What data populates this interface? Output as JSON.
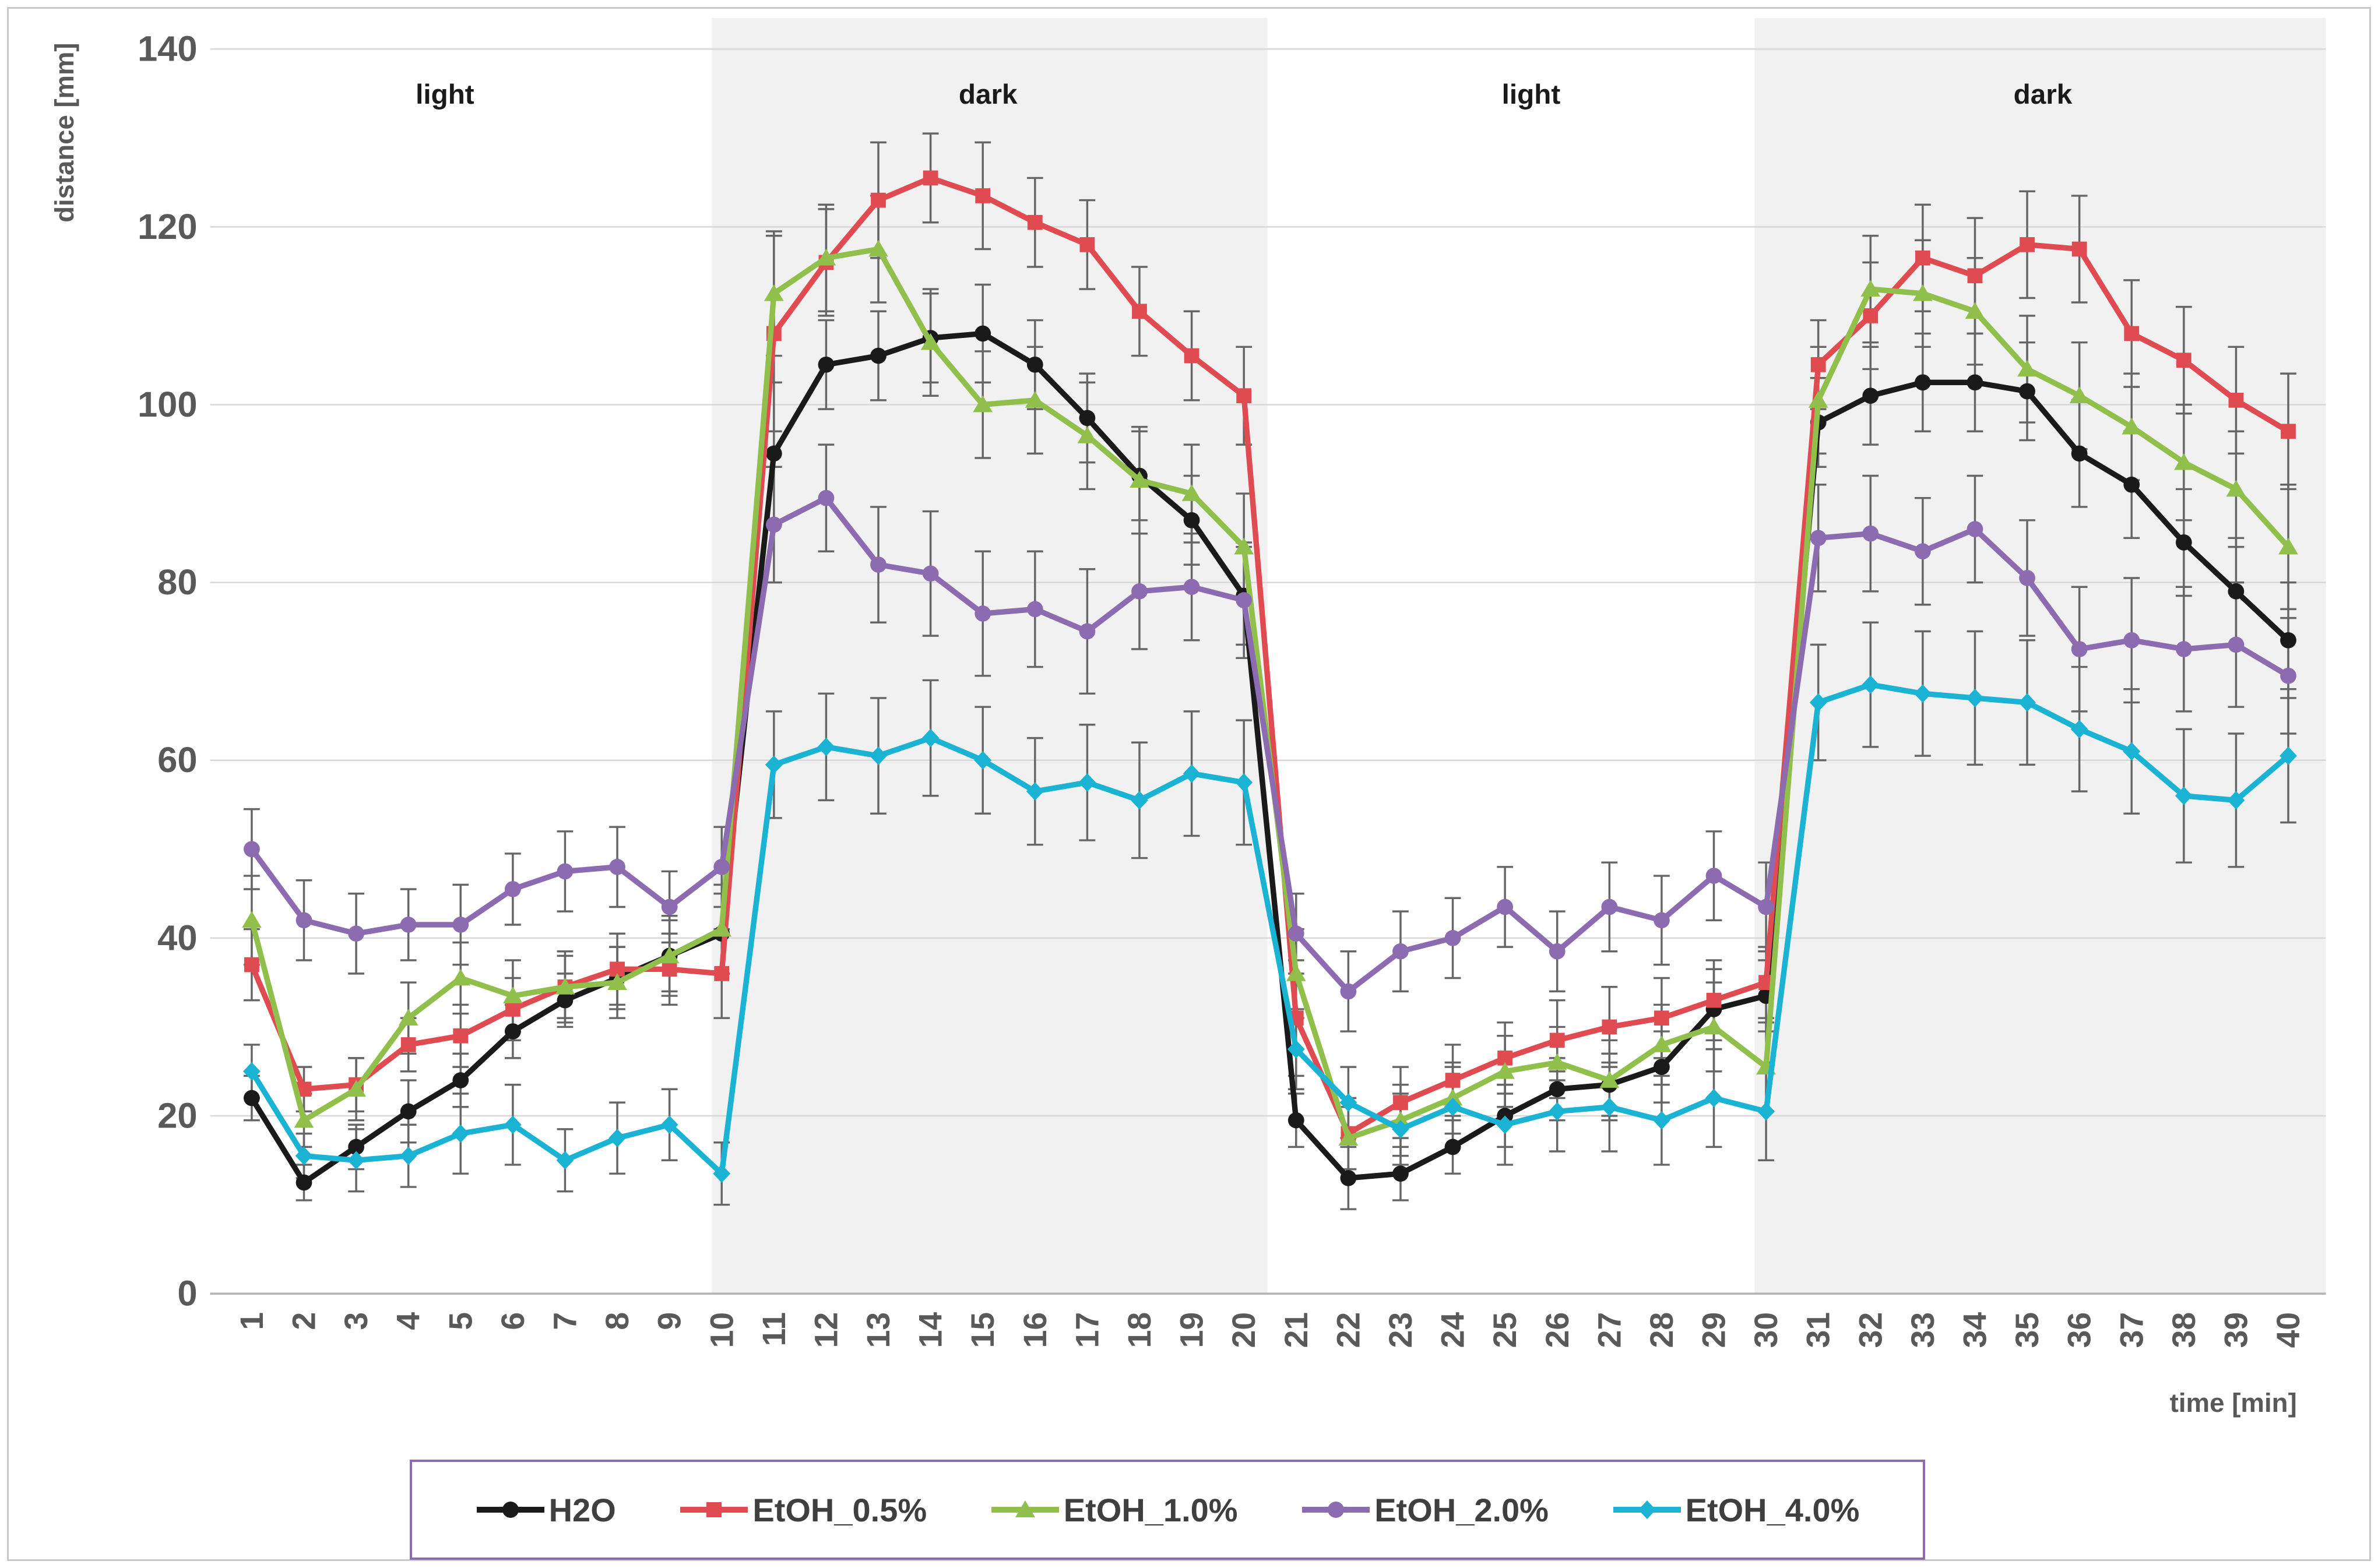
{
  "figure": {
    "border_color": "#c9c9c9",
    "background": "#ffffff"
  },
  "chart_data": {
    "type": "line",
    "title": "",
    "xlabel": "time [min]",
    "ylabel": "distance [mm]",
    "ylim": [
      0,
      140
    ],
    "yticks": [
      0,
      20,
      40,
      60,
      80,
      100,
      120,
      140
    ],
    "xticks": [
      1,
      2,
      3,
      4,
      5,
      6,
      7,
      8,
      9,
      10,
      11,
      12,
      13,
      14,
      15,
      16,
      17,
      18,
      19,
      20,
      21,
      22,
      23,
      24,
      25,
      26,
      27,
      28,
      29,
      30,
      31,
      32,
      33,
      34,
      35,
      36,
      37,
      38,
      39,
      40
    ],
    "grid": "horizontal",
    "legend_position": "bottom",
    "phase_bands": [
      {
        "label": "light",
        "x_start": 0.2,
        "x_end": 9.81,
        "shaded": false,
        "label_x": 4.7
      },
      {
        "label": "dark",
        "x_start": 9.81,
        "x_end": 20.45,
        "shaded": true,
        "label_x": 15.1
      },
      {
        "label": "light",
        "x_start": 20.45,
        "x_end": 29.78,
        "shaded": false,
        "label_x": 25.5
      },
      {
        "label": "dark",
        "x_start": 29.78,
        "x_end": 40.72,
        "shaded": true,
        "label_x": 35.3
      }
    ],
    "series": [
      {
        "name": "H2O",
        "color": "#1a1a1a",
        "marker": "circle",
        "values": [
          22,
          12.5,
          16.5,
          20.5,
          24,
          29.5,
          33,
          35.5,
          38,
          40.5,
          94.5,
          104.5,
          105.5,
          107.5,
          108,
          104.5,
          98.5,
          92,
          87,
          78.5,
          19.5,
          13,
          13.5,
          16.5,
          20,
          23,
          23.5,
          25.5,
          32,
          33.5,
          98,
          101,
          102.5,
          102.5,
          101.5,
          94.5,
          91,
          84.5,
          79,
          73.5
        ],
        "errors": [
          2.5,
          2,
          2.5,
          3.5,
          3,
          3,
          3,
          3.5,
          4,
          4.5,
          8,
          5,
          5,
          5,
          5.5,
          5,
          5,
          5,
          5,
          5.5,
          3,
          3.5,
          3,
          3,
          3.5,
          3.5,
          3.5,
          4,
          4.5,
          4,
          5,
          5.5,
          5.5,
          5.5,
          5.5,
          6,
          6,
          6,
          6,
          6.5
        ]
      },
      {
        "name": "EtOH_0.5%",
        "color": "#df4b50",
        "marker": "square",
        "values": [
          37,
          23,
          23.5,
          28,
          29,
          32,
          34.5,
          36.5,
          36.5,
          36,
          108,
          116,
          123,
          125.5,
          123.5,
          120.5,
          118,
          110.5,
          105.5,
          101,
          31,
          18,
          21.5,
          24,
          26.5,
          28.5,
          30,
          31,
          33,
          35,
          104.5,
          110,
          116.5,
          114.5,
          118,
          117.5,
          108,
          105,
          100.5,
          97
        ],
        "errors": [
          4,
          2.5,
          3,
          3,
          3.5,
          3.5,
          3.5,
          4,
          4,
          5,
          11,
          6,
          6.5,
          5,
          6,
          5,
          5,
          5,
          5,
          5.5,
          6.5,
          4,
          4,
          4,
          4,
          4.5,
          4.5,
          4.5,
          4.5,
          4,
          5,
          6,
          6,
          6.5,
          6,
          6,
          6,
          6,
          6,
          6.5
        ]
      },
      {
        "name": "EtOH_1.0%",
        "color": "#90bf4c",
        "marker": "triangle",
        "values": [
          42,
          19.5,
          23,
          31,
          35.5,
          33.5,
          34.5,
          35,
          38,
          41,
          112.5,
          116.5,
          117.5,
          107,
          100,
          100.5,
          96.5,
          91.5,
          90,
          84,
          36,
          17.5,
          19.5,
          22,
          25,
          26,
          24,
          28,
          30,
          25.5,
          100.5,
          113,
          112.5,
          110.5,
          104,
          101,
          97.5,
          93.5,
          90.5,
          84
        ],
        "errors": [
          5,
          3,
          3.5,
          4,
          4,
          4,
          4,
          4,
          4.5,
          5,
          7,
          6,
          6,
          6,
          6,
          6,
          6,
          6,
          5.5,
          6,
          5,
          3.5,
          4,
          4,
          4,
          4,
          4.5,
          4.5,
          5,
          5,
          6,
          6,
          6,
          6,
          6,
          6,
          6,
          6.5,
          6.5,
          7
        ]
      },
      {
        "name": "EtOH_2.0%",
        "color": "#8d6bb0",
        "marker": "circle",
        "values": [
          50,
          42,
          40.5,
          41.5,
          41.5,
          45.5,
          47.5,
          48,
          43.5,
          48,
          86.5,
          89.5,
          82,
          81,
          76.5,
          77,
          74.5,
          79,
          79.5,
          78,
          40.5,
          34,
          38.5,
          40,
          43.5,
          38.5,
          43.5,
          42,
          47,
          43.5,
          85,
          85.5,
          83.5,
          86,
          80.5,
          72.5,
          73.5,
          72.5,
          73,
          69.5
        ],
        "errors": [
          4.5,
          4.5,
          4.5,
          4,
          4.5,
          4,
          4.5,
          4.5,
          4,
          4.5,
          6.5,
          6,
          6.5,
          7,
          7,
          6.5,
          7,
          6.5,
          6,
          6.5,
          4.5,
          4.5,
          4.5,
          4.5,
          4.5,
          4.5,
          5,
          5,
          5,
          5,
          6,
          6.5,
          6,
          6,
          6.5,
          7,
          7,
          7,
          7,
          6.5
        ]
      },
      {
        "name": "EtOH_4.0%",
        "color": "#1ab3d3",
        "marker": "diamond",
        "values": [
          25,
          15.5,
          15,
          15.5,
          18,
          19,
          15,
          17.5,
          19,
          13.5,
          59.5,
          61.5,
          60.5,
          62.5,
          60,
          56.5,
          57.5,
          55.5,
          58.5,
          57.5,
          27.5,
          21.5,
          18.5,
          21,
          19,
          20.5,
          21,
          19.5,
          22,
          20.5,
          66.5,
          68.5,
          67.5,
          67,
          66.5,
          63.5,
          61,
          56,
          55.5,
          60.5
        ],
        "errors": [
          3,
          2.5,
          3.5,
          3.5,
          4.5,
          4.5,
          3.5,
          4,
          4,
          3.5,
          6,
          6,
          6.5,
          6.5,
          6,
          6,
          6.5,
          6.5,
          7,
          7,
          4.5,
          4,
          4,
          4.5,
          4.5,
          4.5,
          5,
          5,
          5.5,
          5.5,
          6.5,
          7,
          7,
          7.5,
          7,
          7,
          7,
          7.5,
          7.5,
          7.5
        ]
      }
    ],
    "style": {
      "band_fill": "#f1f1f1",
      "gridline_color": "#d8d8d8",
      "axis_line_color": "#b3b3b3",
      "error_bar_color": "#666666",
      "tick_label_color": "#595959",
      "axis_title_color": "#595959",
      "band_label_color": "#1a1a1a",
      "legend_border_color": "#8d6bb0",
      "legend_text_color": "#3f3f3f"
    }
  },
  "legend": {
    "items": [
      "H2O",
      "EtOH_0.5%",
      "EtOH_1.0%",
      "EtOH_2.0%",
      "EtOH_4.0%"
    ]
  }
}
